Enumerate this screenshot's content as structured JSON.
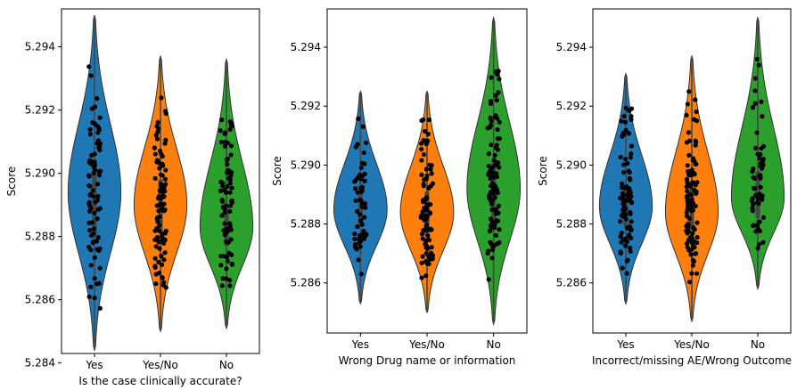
{
  "chart_data": [
    {
      "type": "violin",
      "xlabel": "Is the case clinically accurate?",
      "ylabel": "Score",
      "ylim": [
        5.2843,
        5.2952
      ],
      "yticks": [
        "5.284",
        "5.286",
        "5.288",
        "5.290",
        "5.292",
        "5.294"
      ],
      "grid": false,
      "series": [
        {
          "category": "Yes",
          "color": "#1f77b4",
          "min": 5.2844,
          "max": 5.295,
          "q1": 5.288,
          "median": 5.2894,
          "q3": 5.2904,
          "points": 80
        },
        {
          "category": "Yes/No",
          "color": "#ff7f0e",
          "min": 5.285,
          "max": 5.2937,
          "q1": 5.2881,
          "median": 5.289,
          "q3": 5.2898,
          "points": 90
        },
        {
          "category": "No",
          "color": "#2ca02c",
          "min": 5.2851,
          "max": 5.2936,
          "q1": 5.2877,
          "median": 5.2883,
          "q3": 5.289,
          "points": 80
        }
      ]
    },
    {
      "type": "violin",
      "xlabel": "Wrong Drug name or information",
      "ylabel": "Score",
      "ylim": [
        5.2843,
        5.2953
      ],
      "yticks": [
        "5.286",
        "5.288",
        "5.290",
        "5.292",
        "5.294"
      ],
      "grid": false,
      "series": [
        {
          "category": "Yes",
          "color": "#1f77b4",
          "min": 5.2853,
          "max": 5.2925,
          "q1": 5.2879,
          "median": 5.2885,
          "q3": 5.2892,
          "points": 60
        },
        {
          "category": "Yes/No",
          "color": "#ff7f0e",
          "min": 5.285,
          "max": 5.2925,
          "q1": 5.2876,
          "median": 5.2884,
          "q3": 5.2891,
          "points": 90
        },
        {
          "category": "No",
          "color": "#2ca02c",
          "min": 5.2846,
          "max": 5.295,
          "q1": 5.2881,
          "median": 5.2892,
          "q3": 5.2901,
          "points": 100
        }
      ]
    },
    {
      "type": "violin",
      "xlabel": "Incorrect/missing AE/Wrong Outcome",
      "ylabel": "Score",
      "ylim": [
        5.2843,
        5.2953
      ],
      "yticks": [
        "5.286",
        "5.288",
        "5.290",
        "5.292",
        "5.294"
      ],
      "grid": false,
      "series": [
        {
          "category": "Yes",
          "color": "#1f77b4",
          "min": 5.2853,
          "max": 5.2931,
          "q1": 5.2879,
          "median": 5.2886,
          "q3": 5.2893,
          "points": 90
        },
        {
          "category": "Yes/No",
          "color": "#ff7f0e",
          "min": 5.2847,
          "max": 5.2937,
          "q1": 5.2878,
          "median": 5.2884,
          "q3": 5.2892,
          "points": 100
        },
        {
          "category": "No",
          "color": "#2ca02c",
          "min": 5.2858,
          "max": 5.295,
          "q1": 5.2882,
          "median": 5.2889,
          "q3": 5.2898,
          "points": 60
        }
      ]
    }
  ]
}
